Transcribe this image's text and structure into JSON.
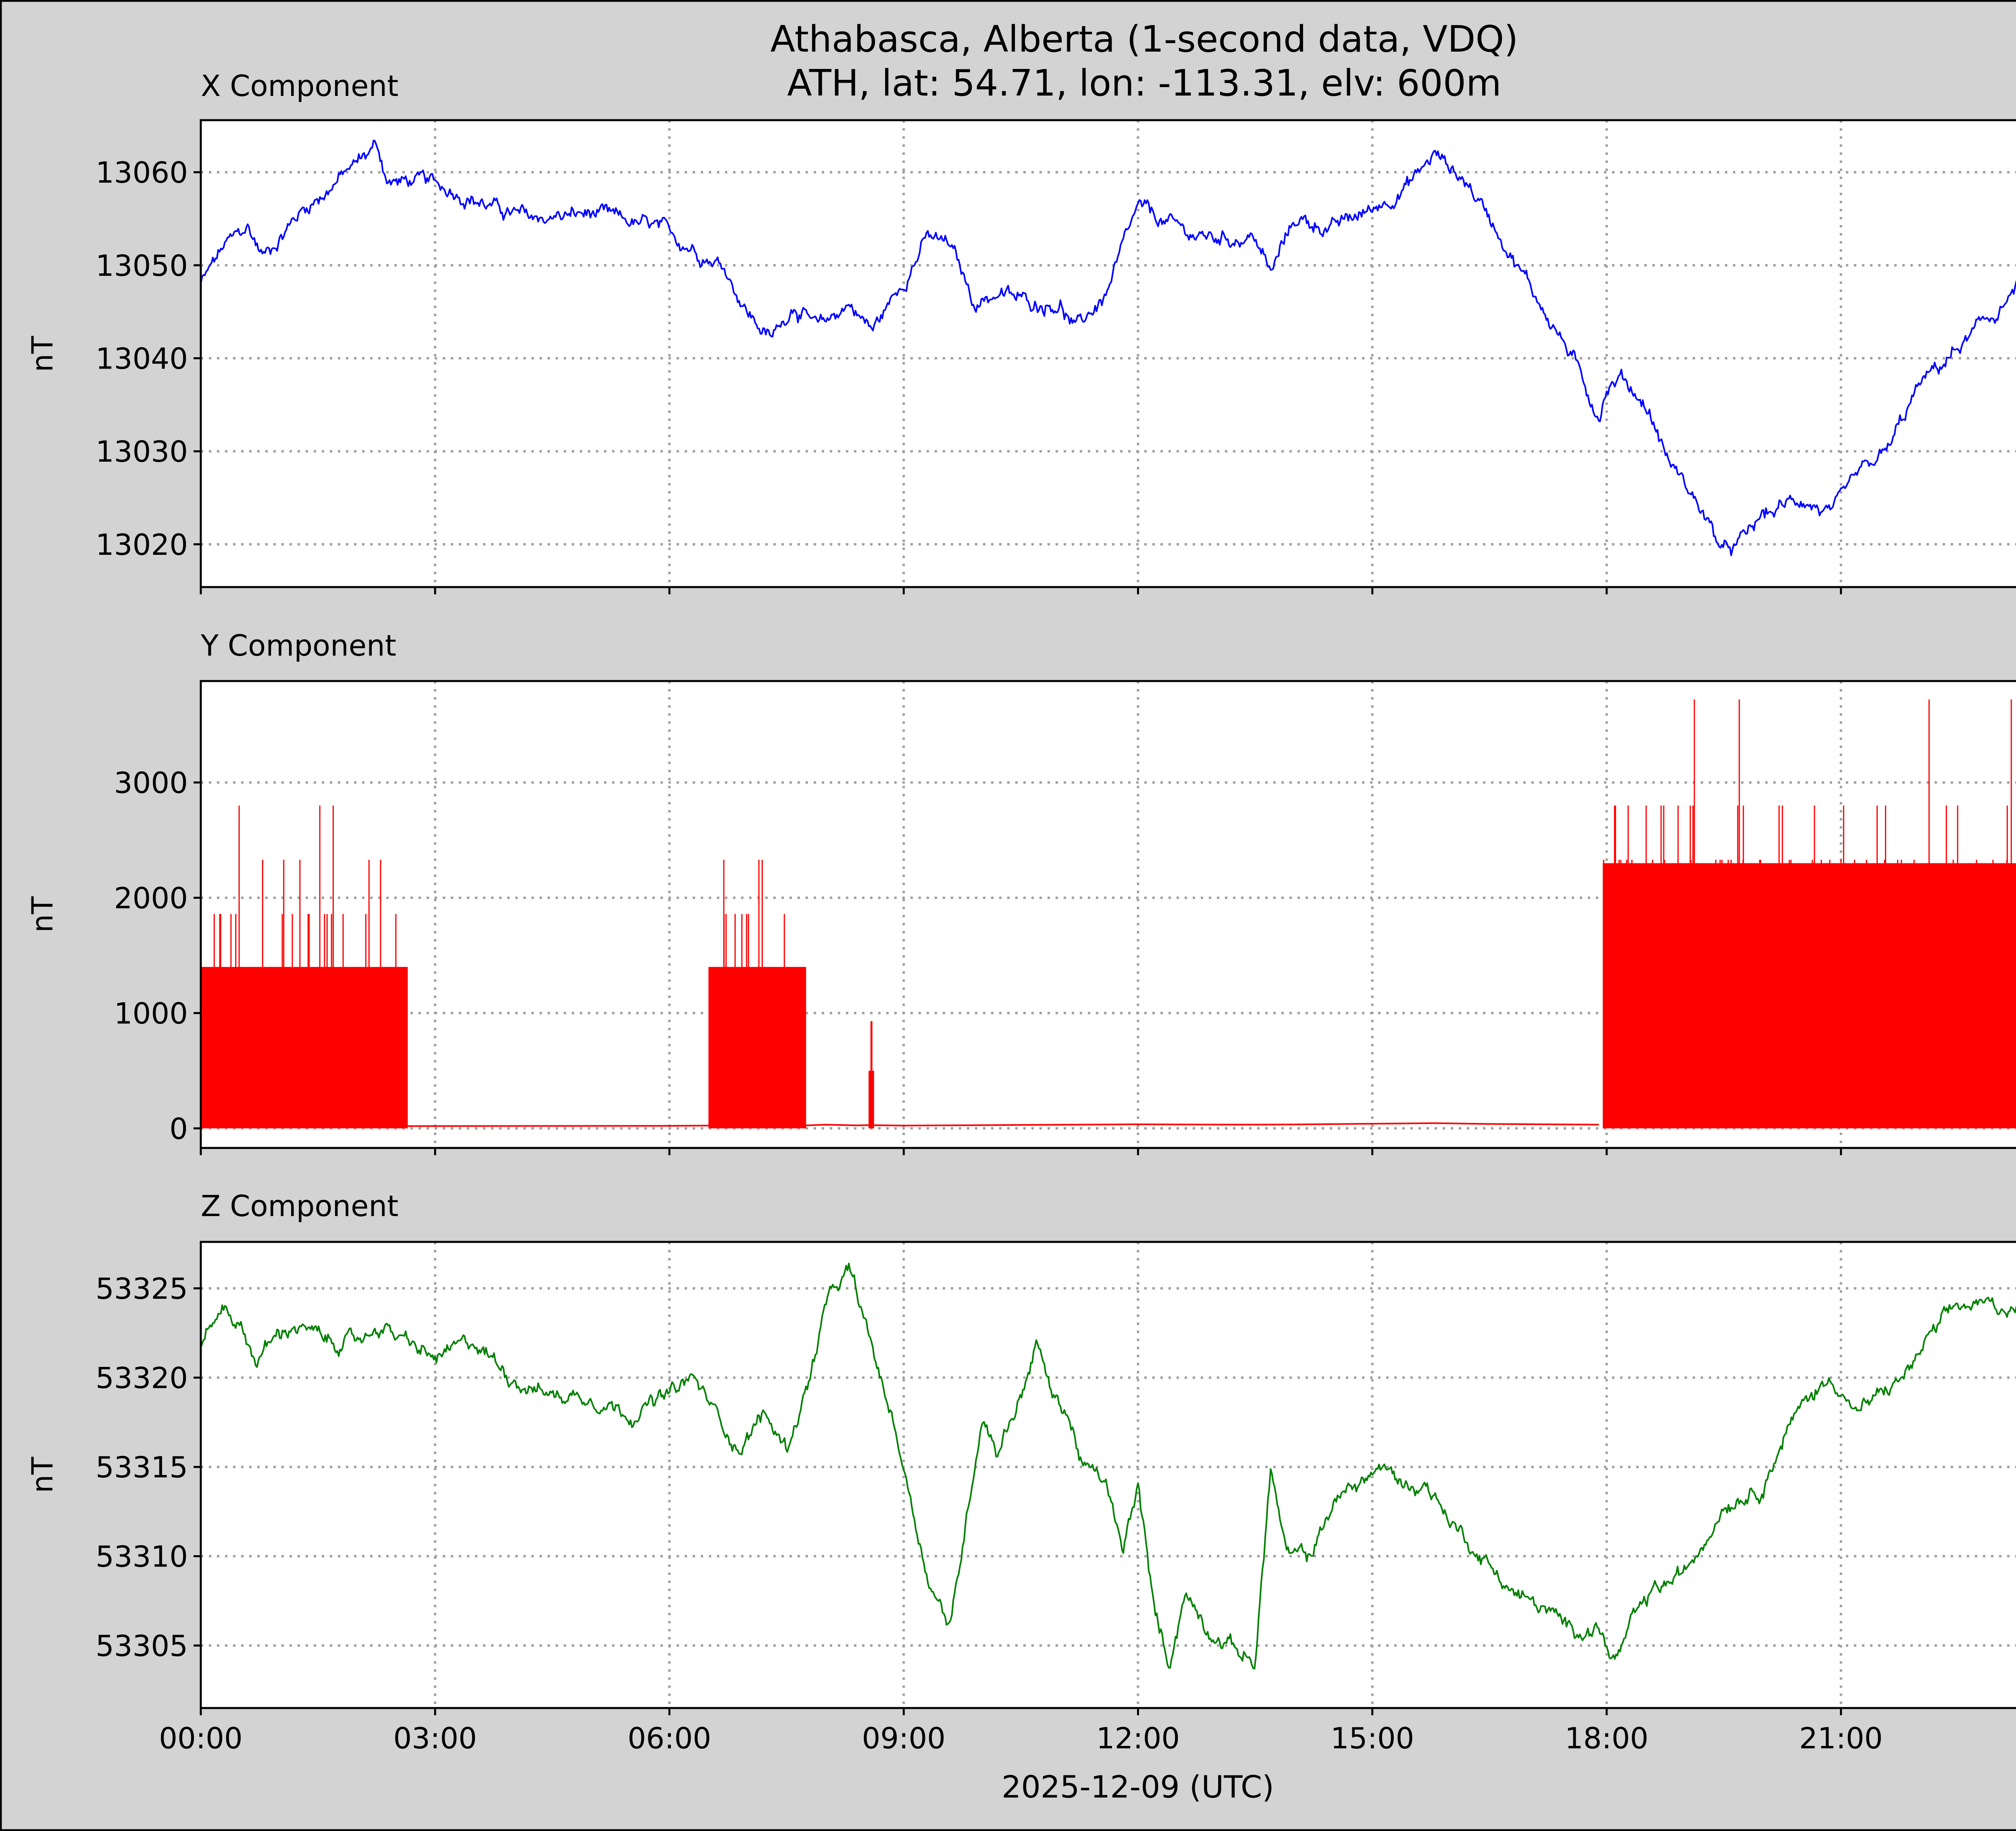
{
  "title_line1": "Athabasca, Alberta (1-second data, VDQ)",
  "title_line2": "ATH, lat: 54.71, lon: -113.31, elv: 600m",
  "xlabel": "2025-12-09 (UTC)",
  "x_ticks": [
    "00:00",
    "03:00",
    "06:00",
    "09:00",
    "12:00",
    "15:00",
    "18:00",
    "21:00"
  ],
  "chart_data": [
    {
      "type": "line",
      "title": "X Component",
      "ylabel": "nT",
      "color": "#0000ff",
      "x_range_hours": [
        0,
        24
      ],
      "ylim": [
        13015.4,
        13065.6
      ],
      "y_ticks": [
        13020,
        13030,
        13040,
        13050,
        13060
      ],
      "grid": true,
      "x": [
        0,
        0.3,
        0.6,
        0.8,
        1.0,
        1.3,
        1.6,
        2.0,
        2.25,
        2.4,
        2.8,
        3.3,
        3.8,
        4.2,
        5.0,
        5.8,
        6.3,
        6.7,
        7.0,
        7.3,
        7.6,
        7.9,
        8.3,
        8.6,
        8.9,
        9.3,
        9.6,
        9.9,
        10.2,
        10.6,
        11.0,
        11.2,
        11.6,
        12.0,
        12.5,
        12.8,
        13.2,
        13.5,
        13.7,
        14.0,
        14.5,
        15.0,
        15.5,
        15.8,
        16.2,
        16.6,
        17.0,
        17.5,
        17.9,
        18.0,
        18.2,
        18.5,
        18.8,
        19.2,
        19.5,
        19.7,
        20.0,
        20.5,
        20.9,
        21.2,
        21.6,
        22.0,
        22.5,
        23.0,
        23.4,
        23.6,
        24.0
      ],
      "y": [
        13048,
        13052,
        13054,
        13051,
        13053,
        13056,
        13058,
        13061,
        13063,
        13059,
        13059,
        13058,
        13056,
        13055,
        13055.5,
        13054,
        13052,
        13050,
        13045,
        13042,
        13046,
        13043,
        13046,
        13043,
        13047,
        13053,
        13052,
        13046,
        13047,
        13046,
        13046,
        13043,
        13047,
        13056,
        13054,
        13053,
        13053,
        13053,
        13049,
        13055,
        13054,
        13056,
        13059,
        13062,
        13059,
        13054,
        13048,
        13041,
        13034,
        13037,
        13038,
        13035,
        13029,
        13024,
        13019,
        13020,
        13023,
        13025,
        13023,
        13027,
        13030,
        13037,
        13041,
        13045,
        13049,
        13054,
        13050
      ]
    },
    {
      "type": "line",
      "title": "Y Component",
      "ylabel": "nT",
      "color": "#ff0000",
      "x_range_hours": [
        0,
        24
      ],
      "ylim": [
        -170,
        3880
      ],
      "y_ticks": [
        0,
        1000,
        2000,
        3000
      ],
      "grid": true,
      "baseline_x": [
        2.65,
        6.0,
        6.5,
        7.7,
        8.0,
        8.4,
        8.55,
        9.0,
        12.0,
        13.3,
        14.0,
        15.8,
        16.5,
        17.9
      ],
      "baseline_y": [
        20,
        22,
        24,
        24,
        32,
        26,
        28,
        24,
        35,
        32,
        34,
        45,
        38,
        32
      ],
      "spike_bursts": [
        {
          "x_start": 0.0,
          "x_end": 2.65,
          "typical_peak": 1400,
          "max_peak": 2800
        },
        {
          "x_start": 6.5,
          "x_end": 7.75,
          "typical_peak": 1400,
          "max_peak": 2800
        },
        {
          "x_start": 8.55,
          "x_end": 8.62,
          "typical_peak": 500,
          "max_peak": 950
        },
        {
          "x_start": 17.95,
          "x_end": 24.0,
          "typical_peak": 2300,
          "max_peak": 3720
        }
      ]
    },
    {
      "type": "line",
      "title": "Z Component",
      "ylabel": "nT",
      "color": "#008000",
      "x_range_hours": [
        0,
        24
      ],
      "ylim": [
        53301.5,
        53327.6
      ],
      "y_ticks": [
        53305,
        53310,
        53315,
        53320,
        53325
      ],
      "grid": true,
      "x": [
        0,
        0.3,
        0.5,
        0.7,
        0.9,
        1.2,
        1.6,
        2.0,
        2.3,
        2.6,
        3.0,
        3.5,
        4.0,
        4.5,
        5.0,
        5.5,
        6.0,
        6.3,
        6.6,
        6.9,
        7.2,
        7.5,
        7.8,
        8.0,
        8.3,
        8.5,
        8.7,
        8.9,
        9.1,
        9.3,
        9.6,
        9.8,
        10.0,
        10.2,
        10.5,
        10.7,
        10.9,
        11.1,
        11.3,
        11.6,
        11.8,
        12.0,
        12.2,
        12.4,
        12.6,
        12.9,
        13.2,
        13.5,
        13.7,
        13.9,
        14.2,
        14.5,
        14.8,
        15.1,
        15.4,
        15.7,
        16.0,
        16.4,
        16.8,
        17.2,
        17.5,
        17.9,
        18.1,
        18.3,
        18.6,
        19.0,
        19.5,
        20.0,
        20.3,
        20.6,
        20.9,
        21.2,
        21.5,
        21.8,
        22.1,
        22.5,
        23.0,
        23.3,
        23.6,
        24.0
      ],
      "y": [
        53322,
        53324,
        53323,
        53321,
        53322,
        53323,
        53322,
        53322,
        53323,
        53322,
        53321,
        53322,
        53320,
        53319,
        53319,
        53318,
        53319,
        53320,
        53318,
        53316,
        53318,
        53316,
        53320,
        53324,
        53326,
        53323,
        53320,
        53317,
        53313,
        53309,
        53306,
        53312,
        53318,
        53316,
        53319,
        53322,
        53319,
        53318,
        53315,
        53314,
        53310,
        53314,
        53307,
        53304,
        53308,
        53306,
        53305,
        53304,
        53315,
        53310,
        53310,
        53313,
        53314,
        53315,
        53314,
        53314,
        53312,
        53310,
        53308,
        53307,
        53306,
        53306,
        53304,
        53306,
        53308,
        53309,
        53313,
        53314,
        53317,
        53319,
        53320,
        53318,
        53319,
        53320,
        53322,
        53324,
        53324,
        53324,
        53324,
        53325
      ]
    }
  ]
}
